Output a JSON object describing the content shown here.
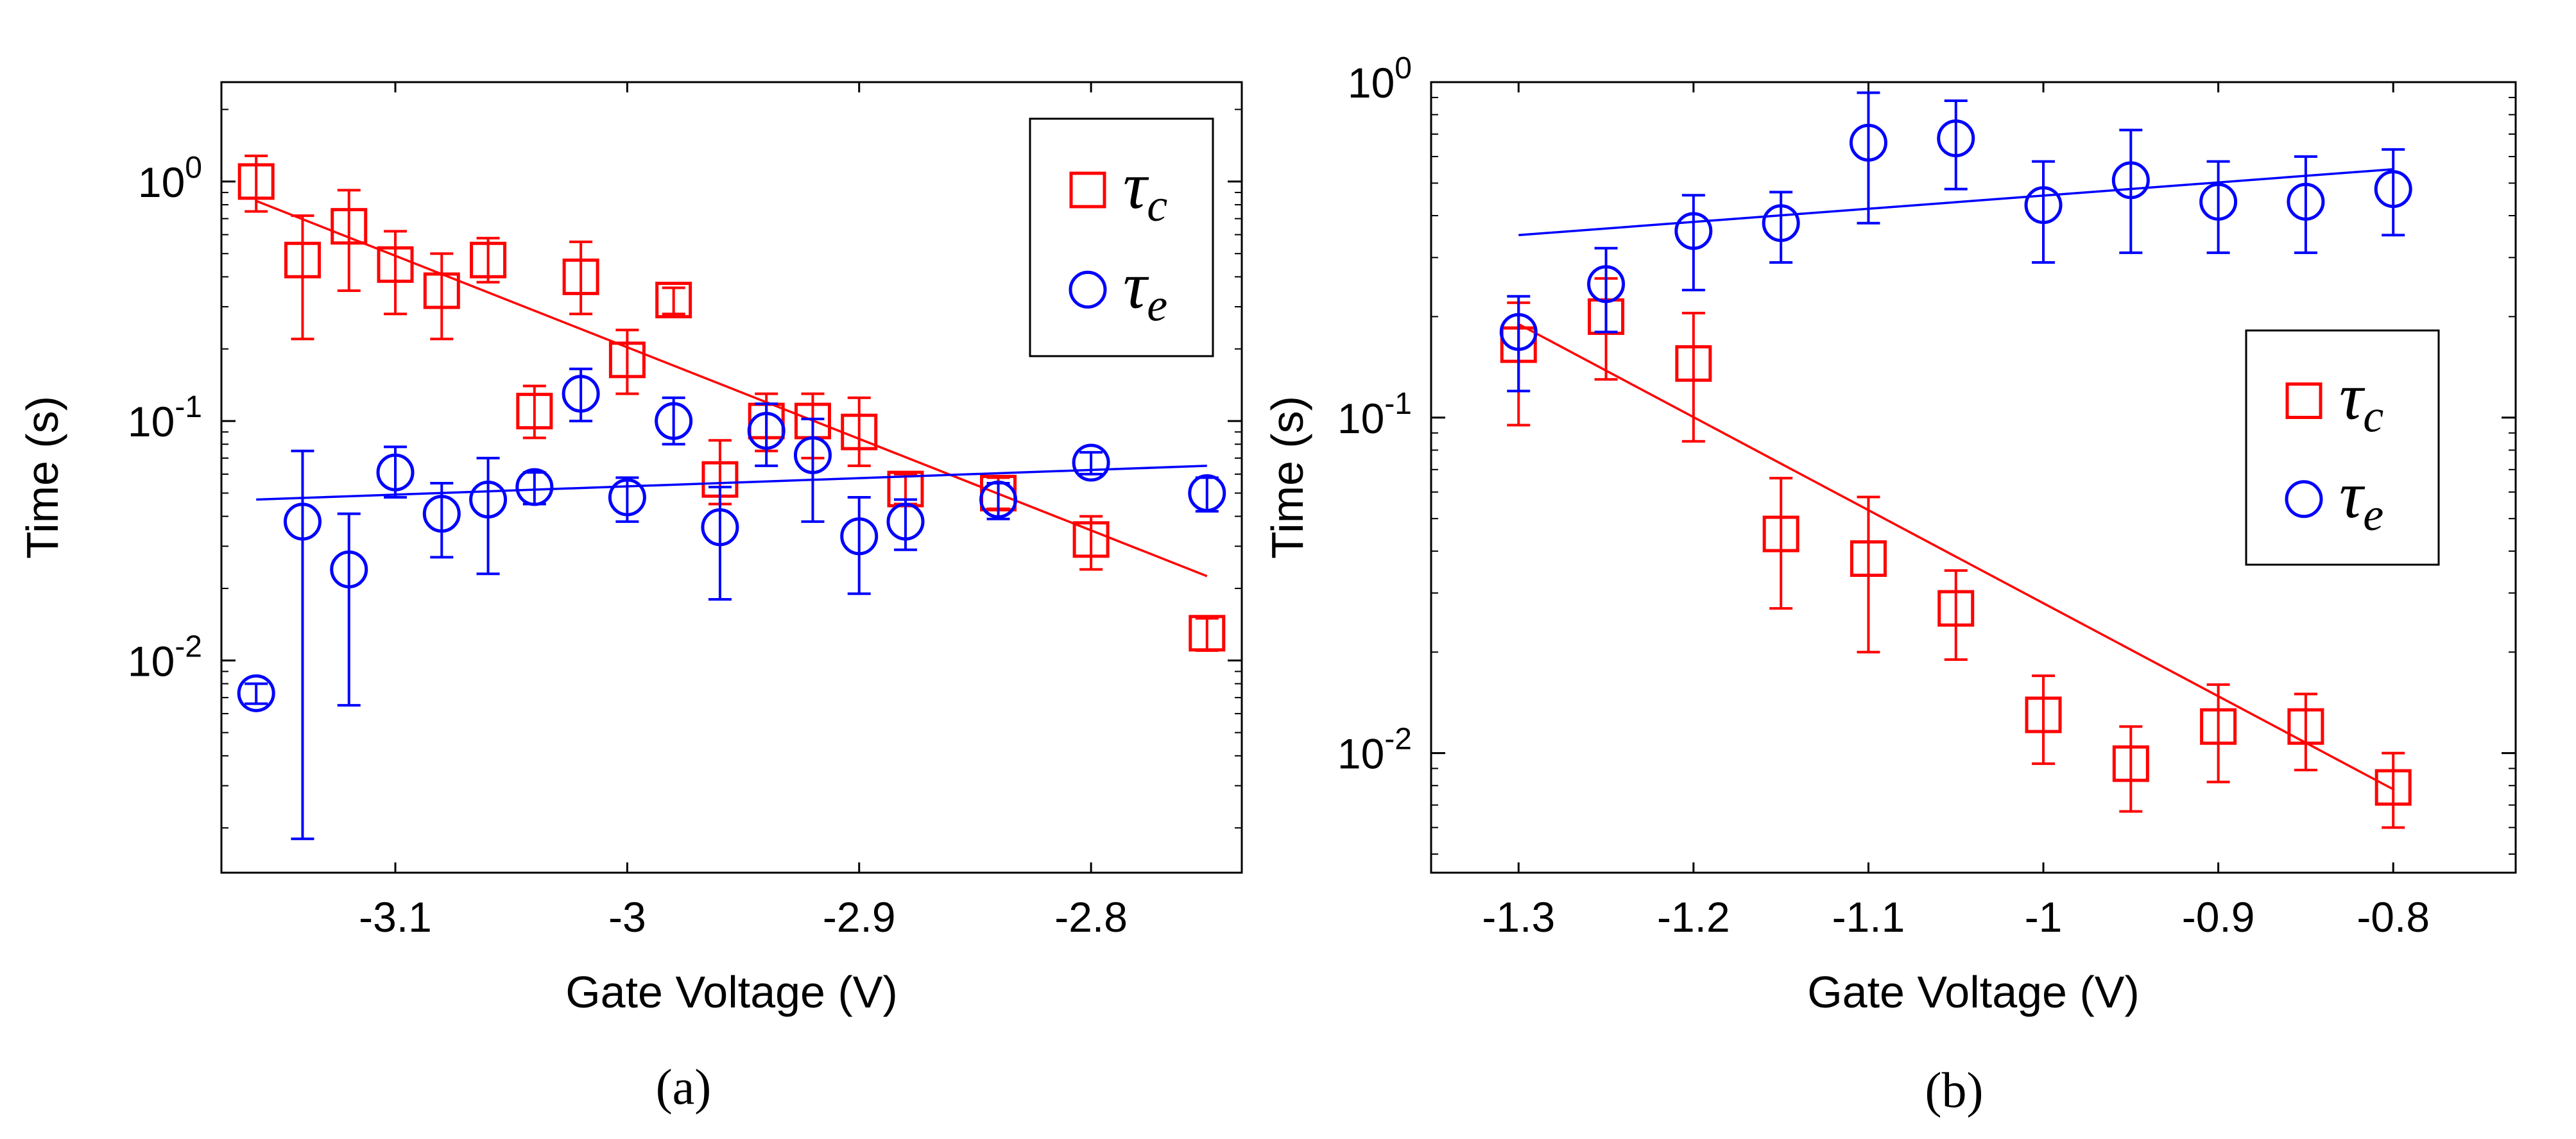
{
  "chart_data": [
    {
      "type": "scatter",
      "caption": "(a)",
      "xlabel": "Gate Voltage (V)",
      "ylabel": "Time (s)",
      "yscale": "log",
      "xlim": [
        -3.175,
        -2.735
      ],
      "ylim": [
        0.0013,
        2.6
      ],
      "xticks": [
        -3.1,
        -3.0,
        -2.9,
        -2.8
      ],
      "xtick_labels": [
        "-3.1",
        "-3",
        "-2.9",
        "-2.8"
      ],
      "yticks": [
        0.01,
        0.1,
        1
      ],
      "ytick_labels": [
        {
          "base": "10",
          "exp": "-2"
        },
        {
          "base": "10",
          "exp": "-1"
        },
        {
          "base": "10",
          "exp": "0"
        }
      ],
      "legend": {
        "position": "top-right",
        "entries": [
          {
            "symbol": "tau",
            "sub": "c",
            "marker": "square",
            "color": "#ff0000"
          },
          {
            "symbol": "tau",
            "sub": "e",
            "marker": "circle",
            "color": "#0000ff"
          }
        ]
      },
      "series": [
        {
          "name": "tau_c",
          "marker": "square",
          "color": "#ff0000",
          "x": [
            -3.16,
            -3.14,
            -3.12,
            -3.1,
            -3.08,
            -3.06,
            -3.04,
            -3.02,
            -3.0,
            -2.98,
            -2.96,
            -2.94,
            -2.92,
            -2.9,
            -2.88,
            -2.84,
            -2.8,
            -2.75
          ],
          "y": [
            1.0,
            0.47,
            0.65,
            0.45,
            0.35,
            0.47,
            0.11,
            0.4,
            0.18,
            0.32,
            0.057,
            0.1,
            0.1,
            0.09,
            0.052,
            0.05,
            0.032,
            0.013
          ],
          "ylow": [
            0.75,
            0.22,
            0.35,
            0.28,
            0.22,
            0.38,
            0.085,
            0.28,
            0.13,
            0.28,
            0.045,
            0.075,
            0.07,
            0.065,
            0.045,
            0.043,
            0.024,
            0.011
          ],
          "yhigh": [
            1.28,
            0.72,
            0.92,
            0.62,
            0.5,
            0.58,
            0.14,
            0.56,
            0.24,
            0.36,
            0.083,
            0.13,
            0.13,
            0.125,
            0.06,
            0.058,
            0.04,
            0.015
          ],
          "fit": {
            "x": [
              -3.16,
              -2.75
            ],
            "y": [
              0.83,
              0.0225
            ]
          }
        },
        {
          "name": "tau_e",
          "marker": "circle",
          "color": "#0000ff",
          "x": [
            -3.16,
            -3.14,
            -3.12,
            -3.1,
            -3.08,
            -3.06,
            -3.04,
            -3.02,
            -3.0,
            -2.98,
            -2.96,
            -2.94,
            -2.92,
            -2.9,
            -2.88,
            -2.84,
            -2.8,
            -2.75
          ],
          "y": [
            0.0073,
            0.038,
            0.024,
            0.061,
            0.041,
            0.047,
            0.053,
            0.13,
            0.048,
            0.1,
            0.036,
            0.091,
            0.072,
            0.033,
            0.038,
            0.047,
            0.067,
            0.05
          ],
          "ylow": [
            0.0066,
            0.0018,
            0.0065,
            0.048,
            0.027,
            0.023,
            0.045,
            0.1,
            0.038,
            0.08,
            0.018,
            0.065,
            0.038,
            0.019,
            0.029,
            0.039,
            0.06,
            0.042
          ],
          "yhigh": [
            0.008,
            0.075,
            0.041,
            0.078,
            0.055,
            0.07,
            0.061,
            0.165,
            0.058,
            0.125,
            0.053,
            0.118,
            0.102,
            0.048,
            0.047,
            0.055,
            0.074,
            0.058
          ],
          "fit": {
            "x": [
              -3.16,
              -2.75
            ],
            "y": [
              0.047,
              0.065
            ]
          }
        }
      ]
    },
    {
      "type": "scatter",
      "caption": "(b)",
      "xlabel": "Gate Voltage (V)",
      "ylabel": "Time (s)",
      "yscale": "log",
      "xlim": [
        -1.35,
        -0.73
      ],
      "ylim": [
        0.0044,
        1.0
      ],
      "xticks": [
        -1.3,
        -1.2,
        -1.1,
        -1.0,
        -0.9,
        -0.8
      ],
      "xtick_labels": [
        "-1.3",
        "-1.2",
        "-1.1",
        "-1",
        "-0.9",
        "-0.8"
      ],
      "yticks": [
        0.01,
        0.1,
        1
      ],
      "ytick_labels": [
        {
          "base": "10",
          "exp": "-2"
        },
        {
          "base": "10",
          "exp": "-1"
        },
        {
          "base": "10",
          "exp": "0"
        }
      ],
      "legend": {
        "position": "middle-right",
        "entries": [
          {
            "symbol": "tau",
            "sub": "c",
            "marker": "square",
            "color": "#ff0000"
          },
          {
            "symbol": "tau",
            "sub": "e",
            "marker": "circle",
            "color": "#0000ff"
          }
        ]
      },
      "series": [
        {
          "name": "tau_c",
          "marker": "square",
          "color": "#ff0000",
          "x": [
            -1.3,
            -1.25,
            -1.2,
            -1.15,
            -1.1,
            -1.05,
            -1.0,
            -0.95,
            -0.9,
            -0.85,
            -0.8
          ],
          "y": [
            0.165,
            0.2,
            0.145,
            0.045,
            0.038,
            0.027,
            0.013,
            0.0093,
            0.012,
            0.012,
            0.0079
          ],
          "ylow": [
            0.095,
            0.13,
            0.085,
            0.027,
            0.02,
            0.019,
            0.0093,
            0.0067,
            0.0082,
            0.0089,
            0.006
          ],
          "yhigh": [
            0.22,
            0.26,
            0.205,
            0.066,
            0.058,
            0.035,
            0.017,
            0.012,
            0.016,
            0.015,
            0.01
          ],
          "fit": {
            "x": [
              -1.3,
              -0.8
            ],
            "y": [
              0.19,
              0.0078
            ]
          }
        },
        {
          "name": "tau_e",
          "marker": "circle",
          "color": "#0000ff",
          "x": [
            -1.3,
            -1.25,
            -1.2,
            -1.15,
            -1.1,
            -1.05,
            -1.0,
            -0.95,
            -0.9,
            -0.85,
            -0.8
          ],
          "y": [
            0.18,
            0.25,
            0.36,
            0.38,
            0.66,
            0.68,
            0.43,
            0.51,
            0.44,
            0.44,
            0.48
          ],
          "ylow": [
            0.12,
            0.18,
            0.24,
            0.29,
            0.38,
            0.48,
            0.29,
            0.31,
            0.31,
            0.31,
            0.35
          ],
          "yhigh": [
            0.23,
            0.32,
            0.46,
            0.47,
            0.93,
            0.88,
            0.58,
            0.72,
            0.58,
            0.6,
            0.63
          ],
          "fit": {
            "x": [
              -1.3,
              -0.8
            ],
            "y": [
              0.35,
              0.55
            ]
          }
        }
      ]
    }
  ]
}
